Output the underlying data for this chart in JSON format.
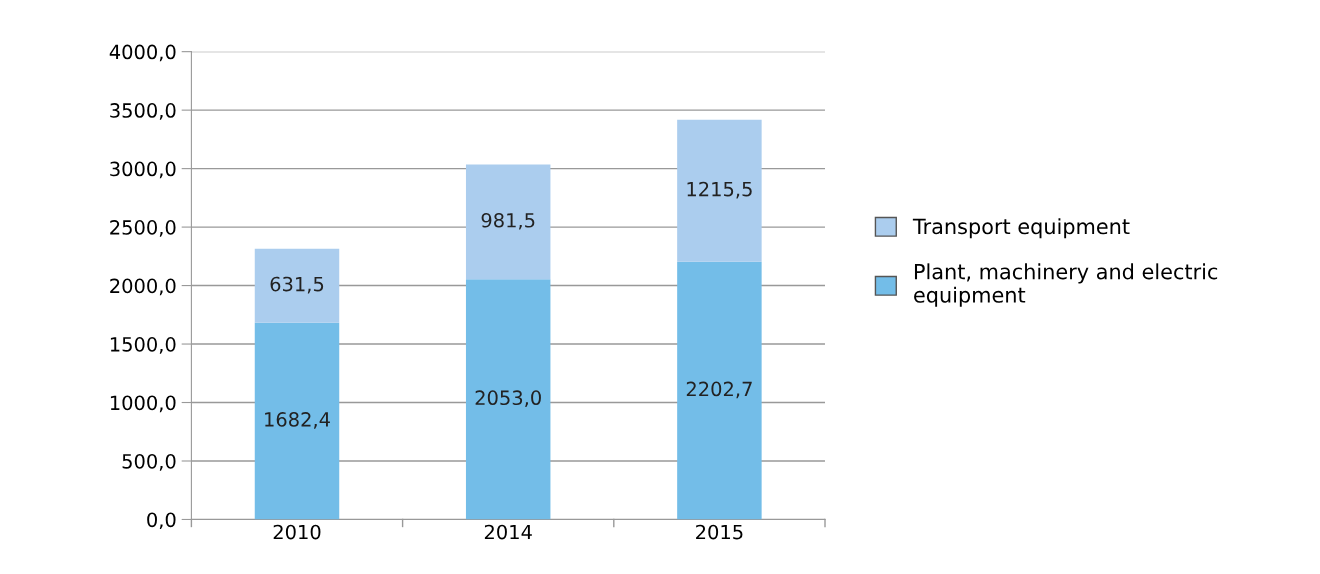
{
  "chart_data": {
    "type": "bar",
    "stacked": true,
    "categories": [
      "2010",
      "2014",
      "2015"
    ],
    "series": [
      {
        "name": "Plant, machinery and electric equipment",
        "color": "#73bde8",
        "values": [
          1682.4,
          2053.0,
          2202.7
        ],
        "value_labels": [
          "1682,4",
          "2053,0",
          "2202,7"
        ]
      },
      {
        "name": "Transport equipment",
        "color": "#abcdee",
        "values": [
          631.5,
          981.5,
          1215.5
        ],
        "value_labels": [
          "631,5",
          "981,5",
          "1215,5"
        ]
      }
    ],
    "ylim": [
      0,
      4000
    ],
    "yticks": [
      {
        "value": 0,
        "label": "0,0"
      },
      {
        "value": 500,
        "label": "500,0"
      },
      {
        "value": 1000,
        "label": "1000,0"
      },
      {
        "value": 1500,
        "label": "1500,0"
      },
      {
        "value": 2000,
        "label": "2000,0"
      },
      {
        "value": 2500,
        "label": "2500,0"
      },
      {
        "value": 3000,
        "label": "3000,0"
      },
      {
        "value": 3500,
        "label": "3500,0"
      },
      {
        "value": 4000,
        "label": "4000,0"
      }
    ],
    "grid": "y",
    "legend": "right"
  }
}
